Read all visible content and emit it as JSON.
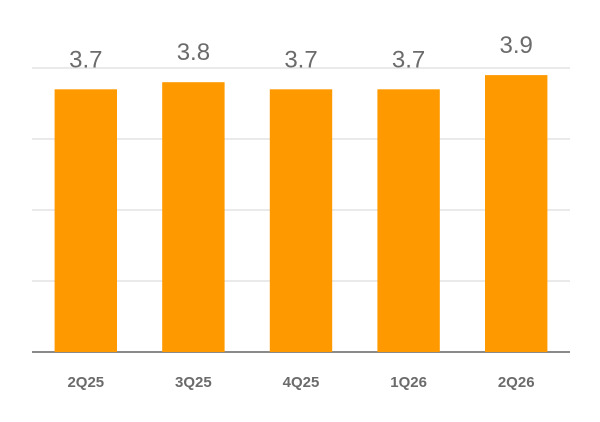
{
  "chart_data": {
    "type": "bar",
    "categories": [
      "2Q25",
      "3Q25",
      "4Q25",
      "1Q26",
      "2Q26"
    ],
    "values": [
      3.7,
      3.8,
      3.7,
      3.7,
      3.9
    ],
    "color": "#ff9900",
    "ylim": [
      0,
      4
    ],
    "yticks": [
      0,
      1,
      2,
      3,
      4
    ],
    "grid": true
  }
}
